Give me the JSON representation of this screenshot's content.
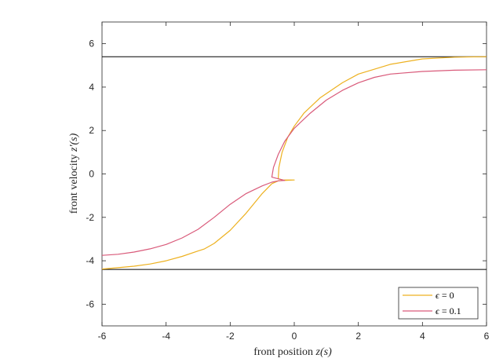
{
  "chart_data": {
    "type": "line",
    "xlabel_text": "front position ",
    "xlabel_math": "z(s)",
    "ylabel_text": "front velocity ",
    "ylabel_math": "z′(s)",
    "xlim": [
      -6,
      6
    ],
    "ylim": [
      -7,
      7
    ],
    "xticks": [
      -6,
      -4,
      -2,
      0,
      2,
      4,
      6
    ],
    "yticks": [
      -6,
      -4,
      -2,
      0,
      2,
      4,
      6
    ],
    "reference_lines": [
      {
        "y": 5.4,
        "color": "#000000"
      },
      {
        "y": -4.4,
        "color": "#000000"
      }
    ],
    "legend_position": "bottom-right",
    "series": [
      {
        "name": "ϵ = 0",
        "legend_symbol": "ϵ",
        "legend_eq": "= 0",
        "color": "#EDB120",
        "points": [
          [
            -6,
            -4.38
          ],
          [
            -5.5,
            -4.32
          ],
          [
            -5,
            -4.25
          ],
          [
            -4.5,
            -4.15
          ],
          [
            -4,
            -4.0
          ],
          [
            -3.5,
            -3.8
          ],
          [
            -3,
            -3.55
          ],
          [
            -2.8,
            -3.45
          ],
          [
            -2.5,
            -3.2
          ],
          [
            -2,
            -2.6
          ],
          [
            -1.5,
            -1.8
          ],
          [
            -1,
            -0.9
          ],
          [
            -0.7,
            -0.45
          ],
          [
            -0.5,
            -0.32
          ],
          [
            -0.3,
            -0.28
          ],
          [
            0,
            -0.28
          ],
          [
            -0.3,
            -0.3
          ],
          [
            -0.5,
            -0.22
          ],
          [
            -0.48,
            0.3
          ],
          [
            -0.38,
            1.0
          ],
          [
            -0.2,
            1.7
          ],
          [
            0,
            2.2
          ],
          [
            0.3,
            2.8
          ],
          [
            0.8,
            3.5
          ],
          [
            1.5,
            4.2
          ],
          [
            2,
            4.6
          ],
          [
            3,
            5.05
          ],
          [
            4,
            5.3
          ],
          [
            5,
            5.38
          ],
          [
            6,
            5.4
          ]
        ]
      },
      {
        "name": "ϵ = 0.1",
        "legend_symbol": "ϵ",
        "legend_eq": "= 0.1",
        "color": "#D95A7A",
        "points": [
          [
            -6,
            -3.75
          ],
          [
            -5.5,
            -3.7
          ],
          [
            -5,
            -3.6
          ],
          [
            -4.5,
            -3.45
          ],
          [
            -4,
            -3.25
          ],
          [
            -3.5,
            -2.95
          ],
          [
            -3,
            -2.55
          ],
          [
            -2.5,
            -2.0
          ],
          [
            -2,
            -1.4
          ],
          [
            -1.5,
            -0.9
          ],
          [
            -1,
            -0.55
          ],
          [
            -0.7,
            -0.38
          ],
          [
            -0.5,
            -0.32
          ],
          [
            -0.3,
            -0.3
          ],
          [
            -0.7,
            -0.15
          ],
          [
            -0.65,
            0.3
          ],
          [
            -0.5,
            0.9
          ],
          [
            -0.3,
            1.5
          ],
          [
            0,
            2.1
          ],
          [
            0.5,
            2.8
          ],
          [
            1,
            3.4
          ],
          [
            1.5,
            3.85
          ],
          [
            2,
            4.2
          ],
          [
            2.5,
            4.45
          ],
          [
            3,
            4.6
          ],
          [
            4,
            4.72
          ],
          [
            5,
            4.78
          ],
          [
            6,
            4.8
          ]
        ]
      }
    ]
  }
}
